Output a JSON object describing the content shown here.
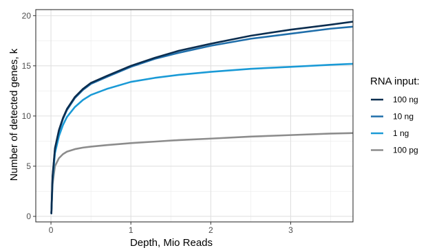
{
  "chart_data": {
    "type": "line",
    "title": "",
    "xlabel": "Depth, Mio Reads",
    "ylabel": "Number of detected genes, k",
    "xlim": [
      -0.19,
      3.78
    ],
    "ylim": [
      -0.55,
      20.6
    ],
    "x_ticks": [
      0,
      1,
      2,
      3
    ],
    "x_tick_labels": [
      "0",
      "1",
      "2",
      "3"
    ],
    "y_ticks": [
      0,
      5,
      10,
      15,
      20
    ],
    "y_tick_labels": [
      "0",
      "5",
      "10",
      "15",
      "20"
    ],
    "grid": true,
    "legend": {
      "title": "RNA input:",
      "position": "right"
    },
    "series": [
      {
        "name": "100 ng",
        "color": "#0b2d4f",
        "x": [
          0.005,
          0.02,
          0.05,
          0.1,
          0.15,
          0.2,
          0.3,
          0.4,
          0.5,
          0.7,
          1.0,
          1.3,
          1.6,
          2.0,
          2.5,
          3.0,
          3.5,
          3.78
        ],
        "y": [
          0.3,
          4.0,
          6.8,
          8.6,
          9.8,
          10.7,
          11.9,
          12.7,
          13.3,
          14.0,
          15.0,
          15.8,
          16.5,
          17.2,
          18.0,
          18.6,
          19.1,
          19.4
        ]
      },
      {
        "name": "10 ng",
        "color": "#1f6eaa",
        "x": [
          0.005,
          0.02,
          0.05,
          0.1,
          0.15,
          0.2,
          0.3,
          0.4,
          0.5,
          0.7,
          1.0,
          1.3,
          1.6,
          2.0,
          2.5,
          3.0,
          3.5,
          3.78
        ],
        "y": [
          0.3,
          3.9,
          6.7,
          8.5,
          9.7,
          10.6,
          11.8,
          12.6,
          13.2,
          13.9,
          14.9,
          15.7,
          16.3,
          17.0,
          17.7,
          18.2,
          18.7,
          18.9
        ]
      },
      {
        "name": "1 ng",
        "color": "#1a9ad6",
        "x": [
          0.005,
          0.02,
          0.05,
          0.1,
          0.15,
          0.2,
          0.3,
          0.4,
          0.5,
          0.7,
          1.0,
          1.3,
          1.6,
          2.0,
          2.5,
          3.0,
          3.5,
          3.78
        ],
        "y": [
          0.3,
          3.6,
          6.3,
          8.0,
          9.1,
          9.9,
          10.9,
          11.6,
          12.1,
          12.7,
          13.4,
          13.8,
          14.1,
          14.4,
          14.7,
          14.9,
          15.1,
          15.2
        ]
      },
      {
        "name": "100 pg",
        "color": "#8c8c8c",
        "x": [
          0.005,
          0.02,
          0.05,
          0.1,
          0.15,
          0.2,
          0.3,
          0.4,
          0.5,
          0.7,
          1.0,
          1.3,
          1.6,
          2.0,
          2.5,
          3.0,
          3.5,
          3.78
        ],
        "y": [
          0.3,
          3.2,
          5.0,
          5.8,
          6.2,
          6.45,
          6.7,
          6.85,
          6.95,
          7.1,
          7.3,
          7.45,
          7.6,
          7.75,
          7.95,
          8.1,
          8.25,
          8.3
        ]
      }
    ]
  }
}
